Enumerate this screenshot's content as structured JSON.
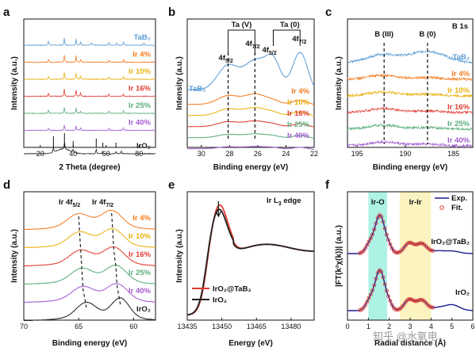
{
  "chart_data": [
    {
      "panel": "a",
      "type": "line",
      "xlabel": "2 Theta (degree)",
      "ylabel": "Intensity (a.u.)",
      "xlim": [
        10,
        90
      ],
      "xticks": [
        20,
        40,
        60,
        80
      ],
      "series": [
        {
          "name": "TaB2",
          "label_text": "TaB₂",
          "color": "#5b9bd5",
          "peaks": [
            [
              25.0,
              5
            ],
            [
              34.6,
              9
            ],
            [
              41.8,
              8
            ],
            [
              44.5,
              4
            ],
            [
              51.2,
              3
            ],
            [
              61.7,
              4
            ],
            [
              66.5,
              3
            ],
            [
              70.5,
              4
            ],
            [
              83.0,
              3
            ]
          ]
        },
        {
          "name": "Ir 4%",
          "label_text": "Ir 4%",
          "color": "#f47b20",
          "peaks": [
            [
              25.0,
              4
            ],
            [
              34.6,
              9
            ],
            [
              41.8,
              8
            ],
            [
              44.5,
              4
            ],
            [
              61.7,
              3
            ],
            [
              70.5,
              3
            ]
          ]
        },
        {
          "name": "Ir 10%",
          "label_text": "Ir 10%",
          "color": "#e8b10f",
          "peaks": [
            [
              25.0,
              4
            ],
            [
              34.6,
              9
            ],
            [
              41.8,
              8
            ],
            [
              44.5,
              4
            ],
            [
              61.7,
              3
            ],
            [
              70.5,
              3
            ]
          ]
        },
        {
          "name": "Ir 16%",
          "label_text": "Ir 16%",
          "color": "#e03c31",
          "peaks": [
            [
              25.0,
              4
            ],
            [
              34.6,
              9
            ],
            [
              41.8,
              8
            ],
            [
              44.5,
              4
            ],
            [
              61.7,
              3
            ],
            [
              70.5,
              3
            ]
          ]
        },
        {
          "name": "Ir 25%",
          "label_text": "Ir 25%",
          "color": "#5aad7c",
          "peaks": [
            [
              25.0,
              4
            ],
            [
              34.6,
              8
            ],
            [
              41.8,
              7
            ],
            [
              44.5,
              3
            ],
            [
              61.7,
              3
            ],
            [
              70.5,
              3
            ]
          ]
        },
        {
          "name": "Ir 40%",
          "label_text": "Ir 40%",
          "color": "#a35bd0",
          "peaks": [
            [
              25.0,
              3
            ],
            [
              34.6,
              7
            ],
            [
              41.8,
              6
            ],
            [
              44.5,
              3
            ],
            [
              61.7,
              3
            ],
            [
              70.5,
              3
            ]
          ]
        },
        {
          "name": "IrO2",
          "label_text": "IrO₂",
          "color": "#222222",
          "peaks": [
            [
              28.0,
              6
            ],
            [
              34.7,
              9
            ],
            [
              40.0,
              4
            ],
            [
              54.0,
              6
            ],
            [
              57.9,
              3
            ],
            [
              66.0,
              3
            ],
            [
              69.2,
              3
            ]
          ]
        }
      ]
    },
    {
      "panel": "b",
      "type": "line",
      "xlabel": "Binding energy (eV)",
      "ylabel": "Intensity (a.u.)",
      "xlim": [
        31,
        22
      ],
      "xticks": [
        30,
        28,
        26,
        24,
        22
      ],
      "annotations": [
        "Ta (V)",
        "Ta (0)",
        "4f5/2",
        "4f7/2",
        "4f5/2",
        "4f7/2"
      ],
      "reference_lines_ev": [
        28.1,
        26.2
      ],
      "series": [
        {
          "name": "TaB2",
          "label_text": "TaB₂",
          "color": "#5b9bd5"
        },
        {
          "name": "Ir 4%",
          "label_text": "Ir 4%",
          "color": "#f47b20"
        },
        {
          "name": "Ir 10%",
          "label_text": "Ir 10%",
          "color": "#e8b10f"
        },
        {
          "name": "Ir 16%",
          "label_text": "Ir 16%",
          "color": "#e03c31"
        },
        {
          "name": "Ir 25%",
          "label_text": "Ir 25%",
          "color": "#5aad7c"
        },
        {
          "name": "Ir 40%",
          "label_text": "Ir 40%",
          "color": "#a35bd0"
        }
      ]
    },
    {
      "panel": "c",
      "type": "line",
      "title": "B 1s",
      "xlabel": "Binding energy (eV)",
      "ylabel": "Intensity (a.u.)",
      "xlim": [
        196,
        183
      ],
      "xticks": [
        195,
        190,
        185
      ],
      "annotations": [
        "B (III)",
        "B (0)"
      ],
      "reference_lines_ev": [
        192.2,
        187.7
      ],
      "series": [
        {
          "name": "TaB2",
          "label_text": "TaB₂",
          "color": "#5b9bd5"
        },
        {
          "name": "Ir 4%",
          "label_text": "Ir 4%",
          "color": "#f47b20"
        },
        {
          "name": "Ir 10%",
          "label_text": "Ir 10%",
          "color": "#e8b10f"
        },
        {
          "name": "Ir 16%",
          "label_text": "Ir 16%",
          "color": "#e03c31"
        },
        {
          "name": "Ir 25%",
          "label_text": "Ir 25%",
          "color": "#5aad7c"
        },
        {
          "name": "Ir 40%",
          "label_text": "Ir 40%",
          "color": "#a35bd0"
        }
      ]
    },
    {
      "panel": "d",
      "type": "line",
      "xlabel": "Binding energy (eV)",
      "ylabel": "Intensity (a.u.)",
      "xlim": [
        70,
        58
      ],
      "xticks": [
        70,
        65,
        60
      ],
      "annotations": [
        "Ir 4f5/2",
        "Ir 4f7/2"
      ],
      "series": [
        {
          "name": "Ir 4%",
          "label_text": "Ir 4%",
          "color": "#f47b20",
          "peaks": [
            65.0,
            62.0
          ]
        },
        {
          "name": "Ir 10%",
          "label_text": "Ir 10%",
          "color": "#e8b10f",
          "peaks": [
            64.9,
            61.9
          ]
        },
        {
          "name": "Ir 16%",
          "label_text": "Ir 16%",
          "color": "#e03c31",
          "peaks": [
            64.8,
            61.8
          ]
        },
        {
          "name": "Ir 25%",
          "label_text": "Ir 25%",
          "color": "#5aad7c",
          "peaks": [
            64.7,
            61.6
          ]
        },
        {
          "name": "Ir 40%",
          "label_text": "Ir 40%",
          "color": "#a35bd0",
          "peaks": [
            64.6,
            61.5
          ]
        },
        {
          "name": "IrO2",
          "label_text": "IrO₂",
          "color": "#222222",
          "peaks": [
            64.3,
            61.2
          ]
        }
      ]
    },
    {
      "panel": "e",
      "type": "line",
      "title": "Ir L3 edge",
      "title_main": "Ir L",
      "title_sub": "3",
      "title_tail": " edge",
      "xlabel": "Energy (eV)",
      "ylabel": "Intensity (a.u.)",
      "xlim": [
        13435,
        13490
      ],
      "xticks": [
        13435,
        13450,
        13465,
        13480
      ],
      "series": [
        {
          "name": "IrO2@TaB2",
          "label_text": "IrO₂@TaB₂",
          "color": "#e03c31"
        },
        {
          "name": "IrO2",
          "label_text": "IrO₂",
          "color": "#222222"
        }
      ]
    },
    {
      "panel": "f",
      "type": "line",
      "xlabel": "Radial distance (Å)",
      "ylabel": "|FT(k²χ(k))| (a.u.)",
      "xlim": [
        0,
        6
      ],
      "xticks": [
        0,
        1,
        2,
        3,
        4,
        5,
        6
      ],
      "shaded_regions": [
        {
          "label": "Ir-O",
          "from": 1.0,
          "to": 1.9,
          "color": "#9ff0e0"
        },
        {
          "label": "Ir-Ir",
          "from": 2.5,
          "to": 4.0,
          "color": "#fbf2b5"
        }
      ],
      "legend": [
        "Exp.",
        "Fit."
      ],
      "series": [
        {
          "name": "IrO2@TaB2",
          "label_text": "IrO₂@TaB₂",
          "exp_color": "#1a1a8c",
          "fit_color": "#e03c31"
        },
        {
          "name": "IrO2",
          "label_text": "IrO₂",
          "exp_color": "#1a1a8c",
          "fit_color": "#e03c31"
        }
      ]
    }
  ],
  "watermark": "知乎 @水氧电"
}
